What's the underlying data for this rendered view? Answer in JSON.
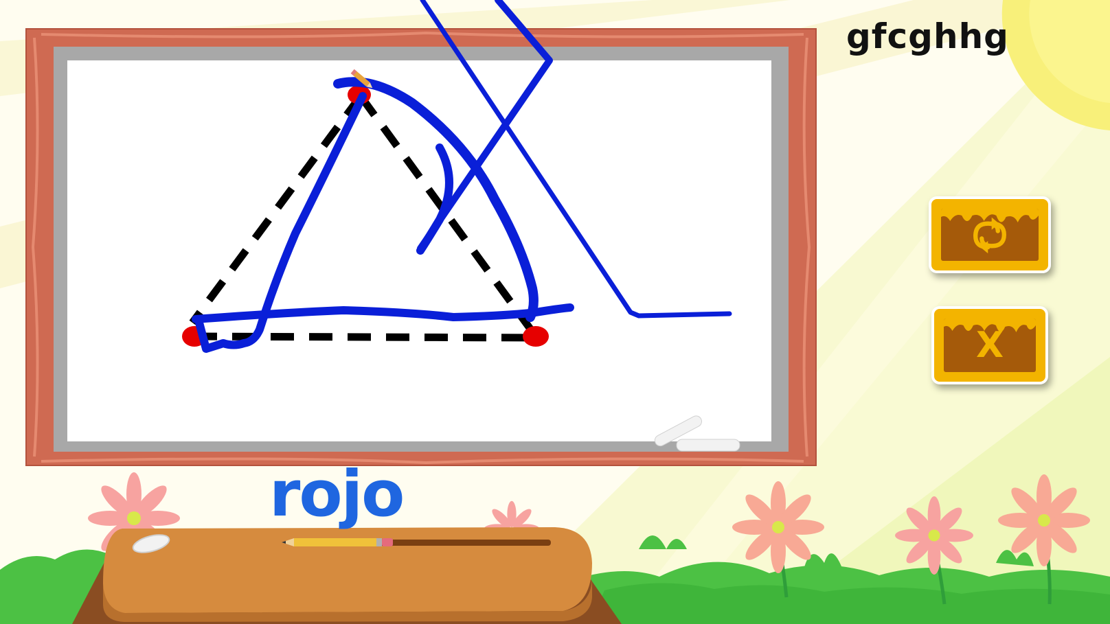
{
  "player": {
    "name": "gfcghhg"
  },
  "word": {
    "text": "rojo"
  },
  "colors": {
    "ink": "#0a1fd8",
    "guide": "#000000",
    "anchor_dot": "#e60000",
    "word": "#1f66e0",
    "button_face": "#f3b400",
    "button_inner": "#a55a0a",
    "frame": "#cf6a52"
  },
  "buttons": {
    "replay": {
      "icon": "replay-icon"
    },
    "close": {
      "icon": "close-icon",
      "glyph": "X"
    }
  }
}
